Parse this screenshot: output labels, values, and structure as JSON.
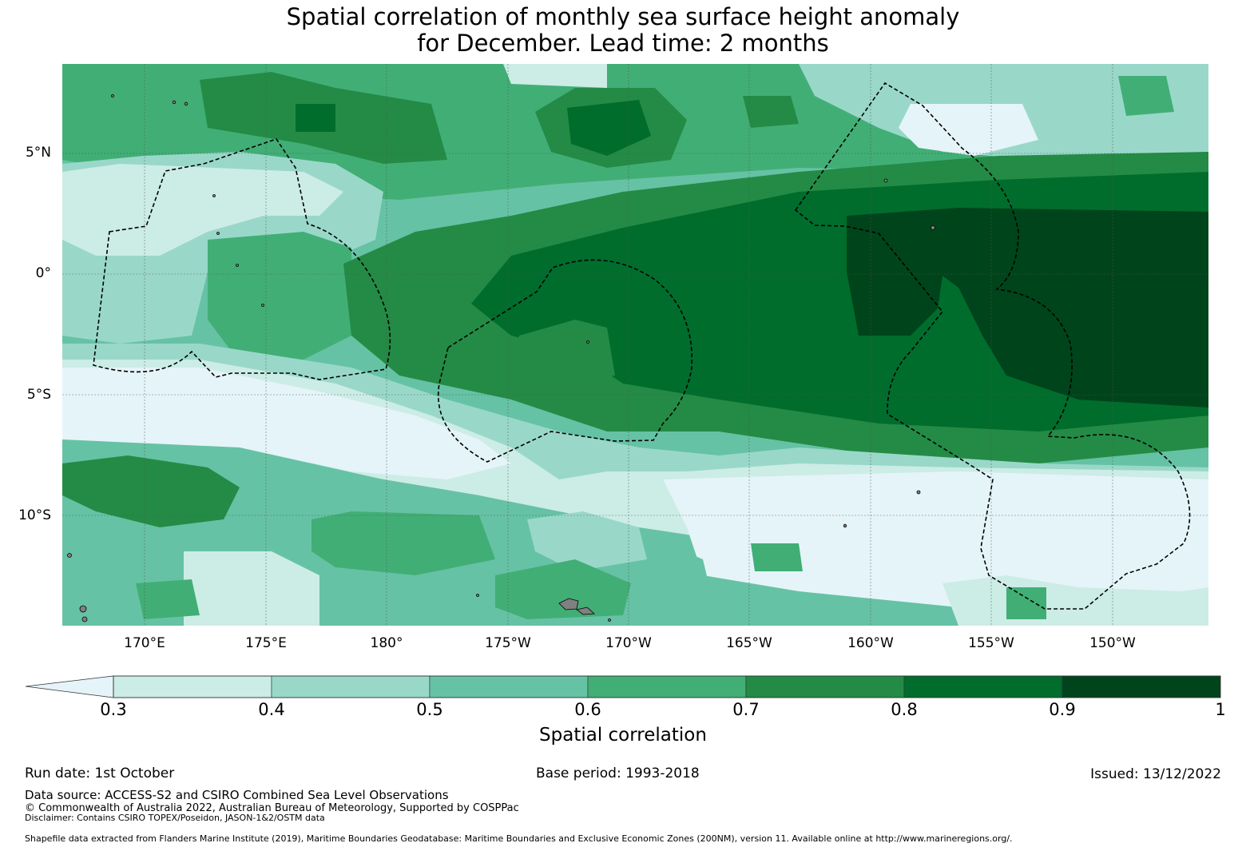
{
  "title": {
    "line1": "Spatial correlation of monthly sea surface height anomaly",
    "line2": "for December. Lead time: 2 months"
  },
  "map": {
    "latitude_labels": [
      "5°N",
      "0°",
      "5°S",
      "10°S"
    ],
    "longitude_labels": [
      "170°E",
      "175°E",
      "180°",
      "175°W",
      "170°W",
      "165°W",
      "160°W",
      "155°W",
      "150°W"
    ],
    "colors": {
      "below_0_3": "#e5f4f9",
      "c_0_3_0_4": "#ccece6",
      "c_0_4_0_5": "#99d8c9",
      "c_0_5_0_6": "#66c2a4",
      "c_0_6_0_7": "#41ae76",
      "c_0_7_0_8": "#238b45",
      "c_0_8_0_9": "#006d2c",
      "c_0_9_1": "#00441b",
      "land": "#808080",
      "eez_boundary": "#000000"
    }
  },
  "colorbar": {
    "label": "Spatial correlation",
    "ticks": [
      "0.3",
      "0.4",
      "0.5",
      "0.6",
      "0.7",
      "0.8",
      "0.9",
      "1"
    ],
    "levels": [
      0.3,
      0.4,
      0.5,
      0.6,
      0.7,
      0.8,
      0.9,
      1.0
    ],
    "extend": "min"
  },
  "footer": {
    "run_date": "Run date: 1st October",
    "base_period": "Base period: 1993-2018",
    "issued": "Issued: 13/12/2022",
    "data_source": "Data source: ACCESS-S2 and CSIRO Combined Sea Level Observations",
    "copyright": "© Commonwealth of Australia 2022, Australian Bureau of Meteorology, Supported by COSPPac",
    "disclaimer": "Disclaimer: Contains CSIRO TOPEX/Poseidon, JASON-1&2/OSTM data",
    "shapefile": "Shapefile data extracted from Flanders Marine Institute (2019), Maritime Boundaries Geodatabase: Maritime Boundaries and Exclusive Economic Zones (200NM), version 11. Available online at http://www.marineregions.org/."
  }
}
